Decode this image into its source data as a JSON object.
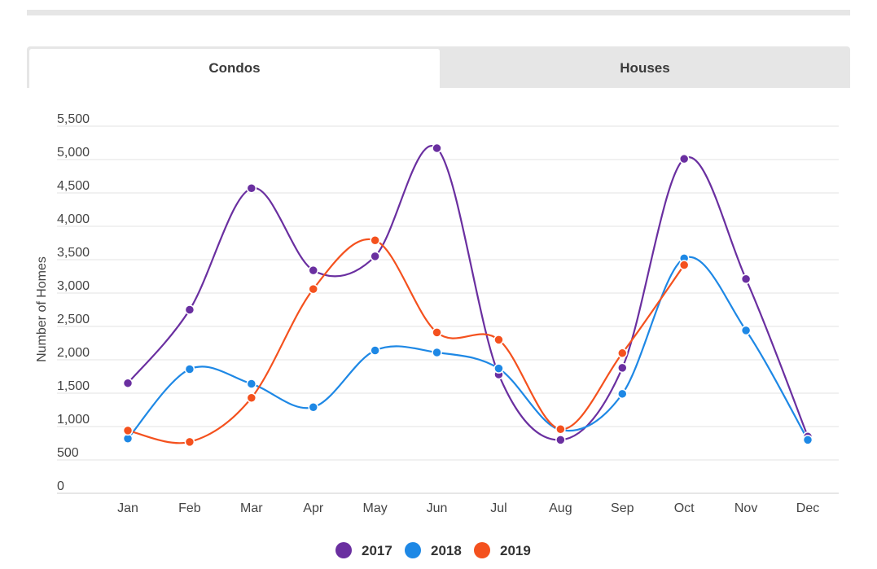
{
  "tabs": [
    {
      "label": "Condos",
      "active": true
    },
    {
      "label": "Houses",
      "active": false
    }
  ],
  "chart_data": {
    "type": "line",
    "title": "",
    "xlabel": "",
    "ylabel": "Number of Homes",
    "categories": [
      "Jan",
      "Feb",
      "Mar",
      "Apr",
      "May",
      "Jun",
      "Jul",
      "Aug",
      "Sep",
      "Oct",
      "Nov",
      "Dec"
    ],
    "ylim": [
      0,
      5500
    ],
    "yticks": [
      0,
      500,
      1000,
      1500,
      2000,
      2500,
      3000,
      3500,
      4000,
      4500,
      5000,
      5500
    ],
    "ytick_labels": [
      "0",
      "500",
      "1,000",
      "1,500",
      "2,000",
      "2,500",
      "3,000",
      "3,500",
      "4,000",
      "4,500",
      "5,000",
      "5,500"
    ],
    "grid": true,
    "legend_position": "bottom",
    "series": [
      {
        "name": "2017",
        "color": "#6a2fa0",
        "values": [
          1650,
          2750,
          4570,
          3340,
          3550,
          5170,
          1780,
          800,
          1880,
          5010,
          3210,
          850
        ]
      },
      {
        "name": "2018",
        "color": "#1e88e5",
        "values": [
          820,
          1860,
          1640,
          1290,
          2140,
          2110,
          1870,
          950,
          1490,
          3520,
          2440,
          800
        ]
      },
      {
        "name": "2019",
        "color": "#f4511e",
        "values": [
          940,
          770,
          1430,
          3060,
          3790,
          2410,
          2300,
          960,
          2100,
          3420,
          null,
          null
        ]
      }
    ]
  }
}
